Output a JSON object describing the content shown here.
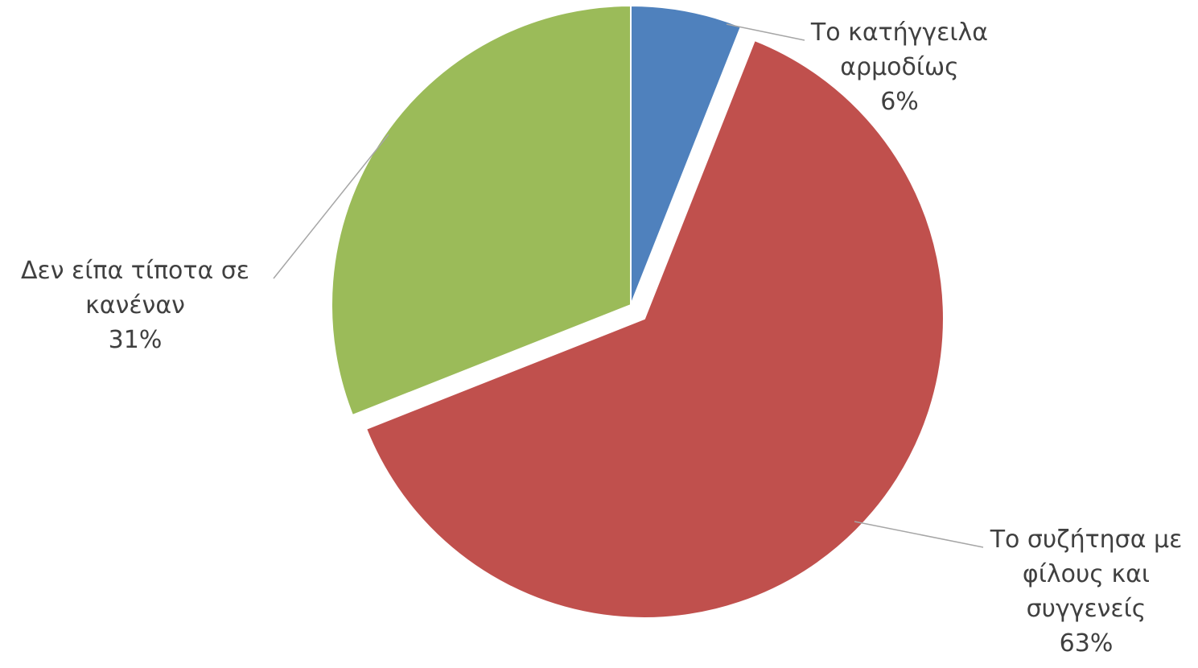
{
  "chart_data": {
    "type": "pie",
    "title": "",
    "slices": [
      {
        "lines": [
          "Το κατήγγειλα",
          "αρμοδίως"
        ],
        "percent_label": "6%",
        "value": 6,
        "color": "#4f81bd",
        "exploded": false
      },
      {
        "lines": [
          "Το συζήτησα με",
          "φίλους και",
          "συγγενείς"
        ],
        "percent_label": "63%",
        "value": 63,
        "color": "#c0504d",
        "exploded": true
      },
      {
        "lines": [
          "Δεν είπα τίποτα σε",
          "κανέναν"
        ],
        "percent_label": "31%",
        "value": 31,
        "color": "#9bbb59",
        "exploded": false
      }
    ],
    "legend": "none"
  }
}
